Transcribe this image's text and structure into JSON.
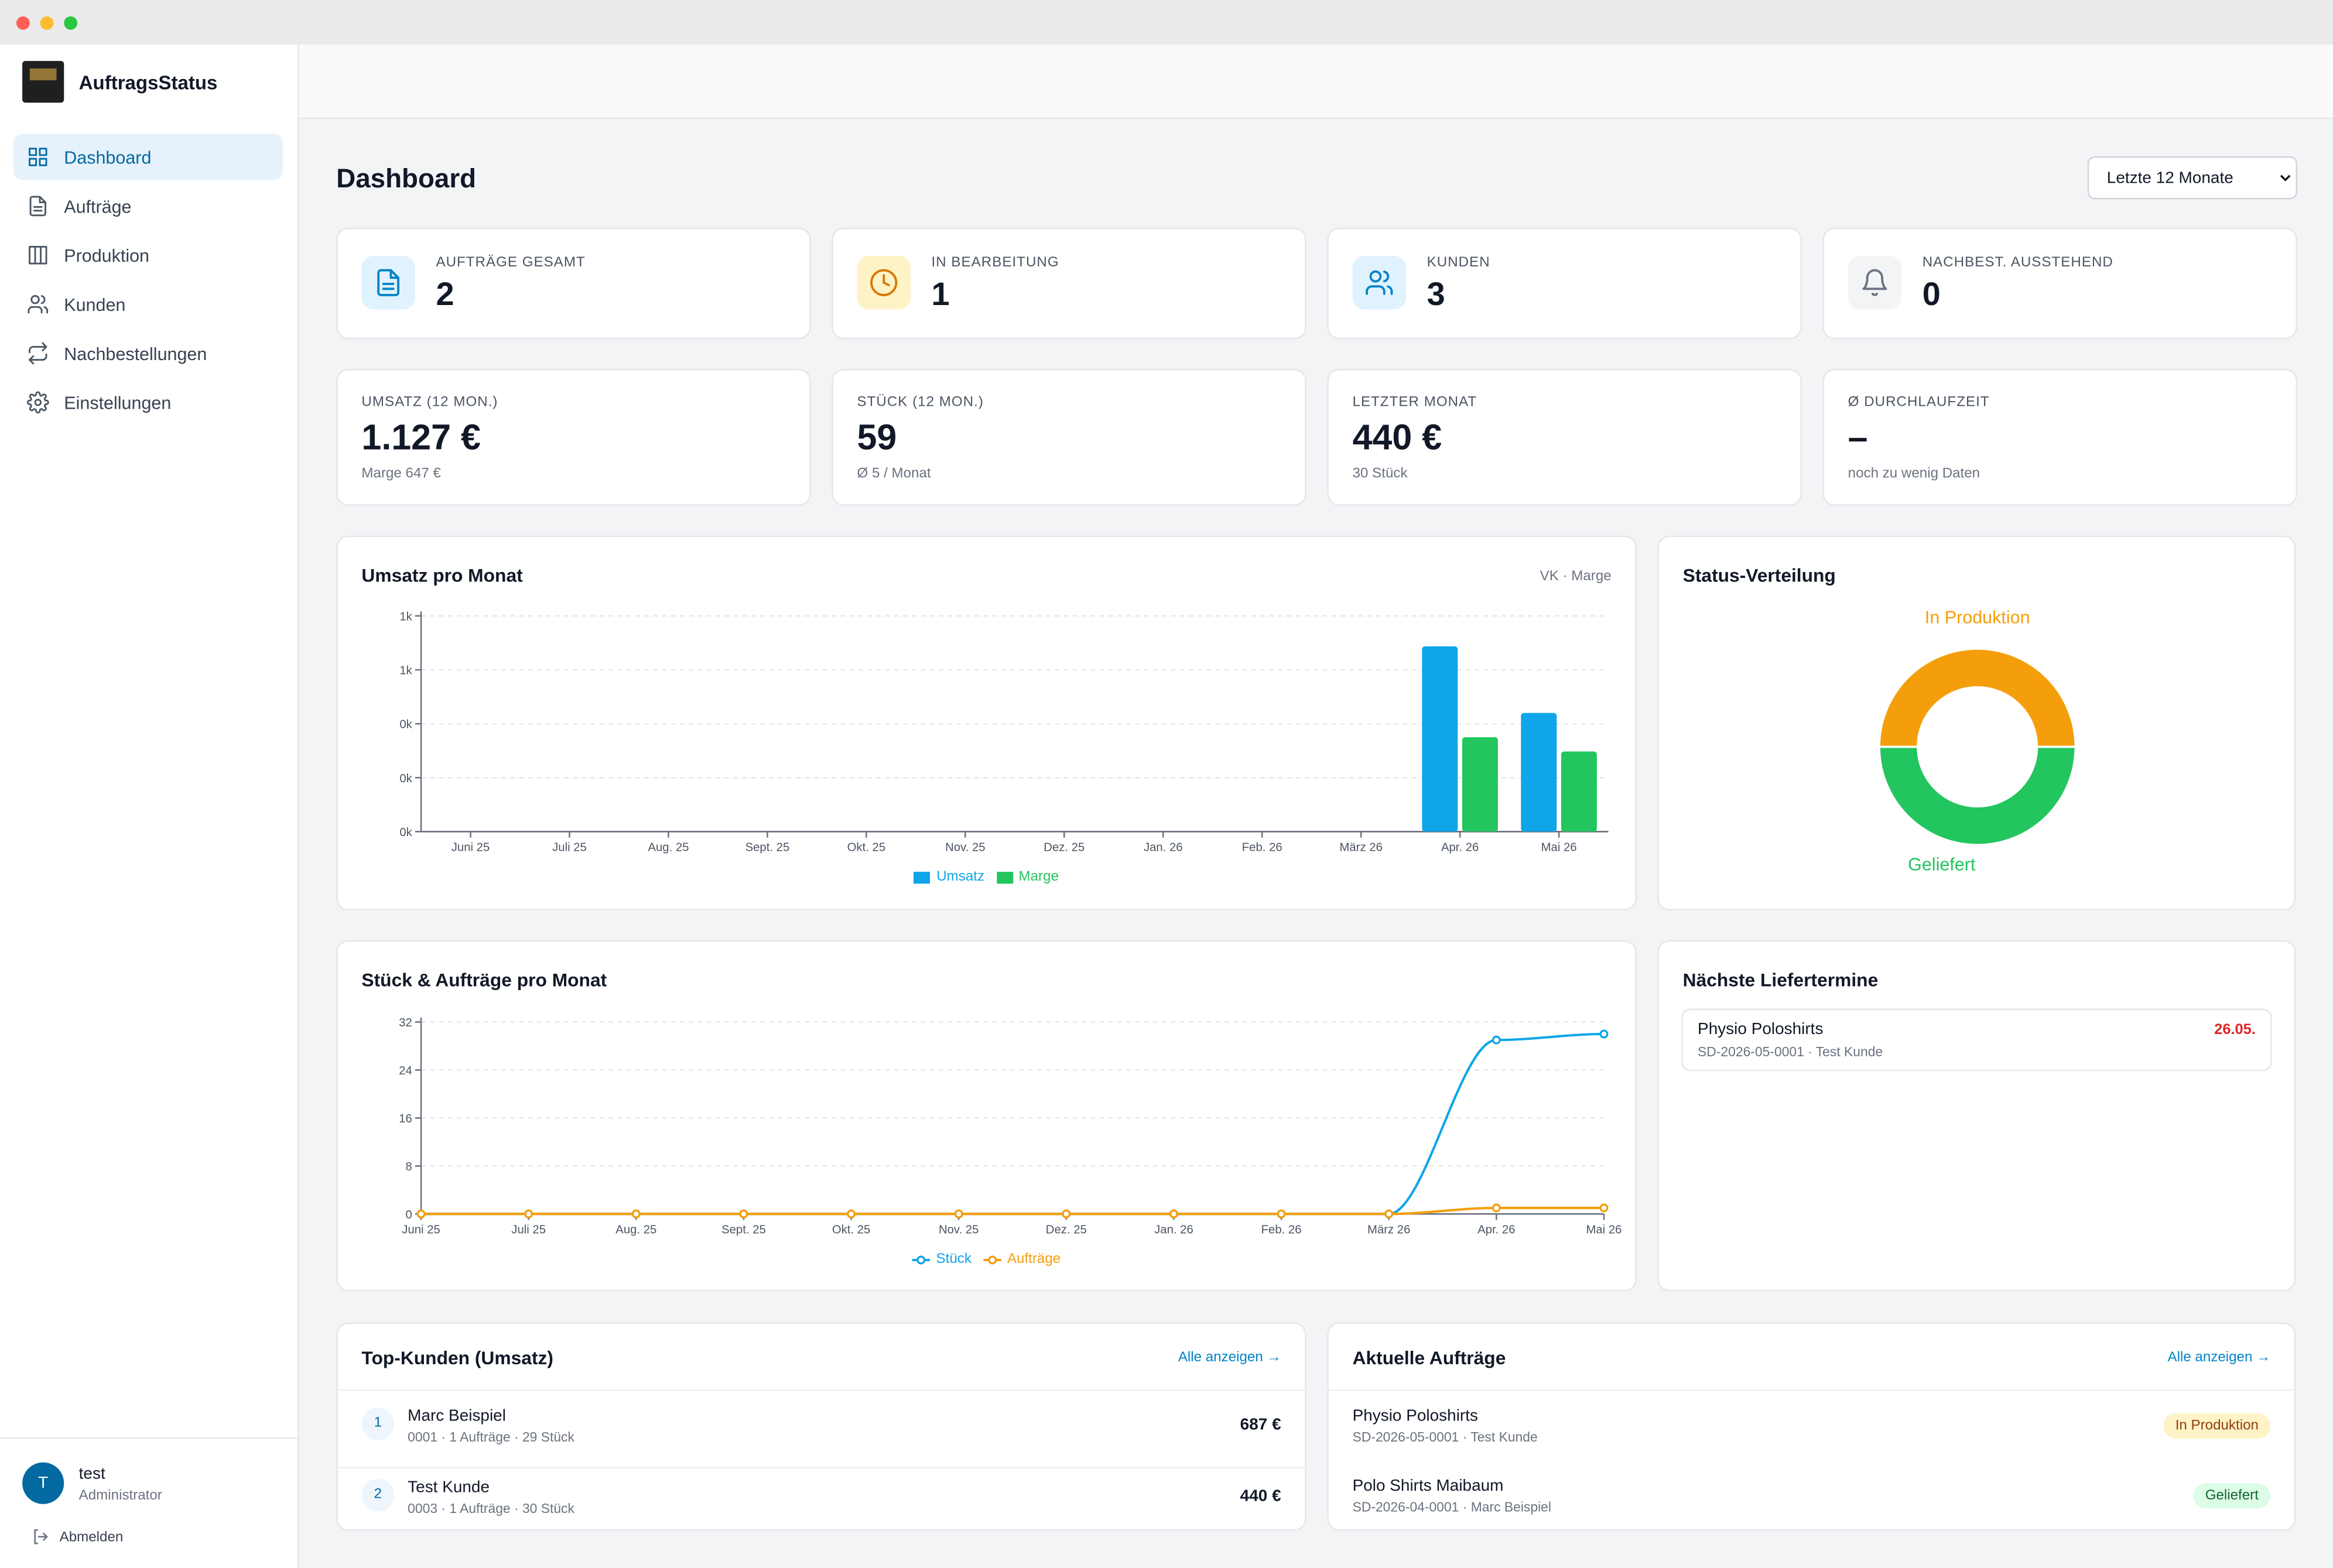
{
  "app_name": "AuftragsStatus",
  "sidebar": {
    "nav": [
      "Dashboard",
      "Aufträge",
      "Produktion",
      "Kunden",
      "Nachbestellungen",
      "Einstellungen"
    ],
    "user": {
      "initial": "T",
      "name": "test",
      "role": "Administrator"
    },
    "logout": "Abmelden"
  },
  "header": {
    "title": "Dashboard",
    "period": "Letzte 12 Monate"
  },
  "stats": [
    {
      "label": "AUFTRÄGE GESAMT",
      "value": 2
    },
    {
      "label": "IN BEARBEITUNG",
      "value": 1
    },
    {
      "label": "KUNDEN",
      "value": 3
    },
    {
      "label": "NACHBEST. AUSSTEHEND",
      "value": 0
    }
  ],
  "kpis": [
    {
      "label": "UMSATZ (12 MON.)",
      "value": "1.127 €",
      "note": "Marge 647 €"
    },
    {
      "label": "STÜCK (12 MON.)",
      "value": 59,
      "note": "Ø 5 / Monat"
    },
    {
      "label": "LETZTER MONAT",
      "value": "440 €",
      "note": "30 Stück"
    },
    {
      "label": "Ø DURCHLAUFZEIT",
      "value": "–",
      "note": "noch zu wenig Daten"
    }
  ],
  "chart_data": [
    {
      "type": "bar",
      "title": "Umsatz pro Monat",
      "subtitle": "VK · Marge",
      "categories": [
        "Juni 25",
        "Juli 25",
        "Aug. 25",
        "Sept. 25",
        "Okt. 25",
        "Nov. 25",
        "Dez. 25",
        "Jan. 26",
        "Feb. 26",
        "März 26",
        "Apr. 26",
        "Mai 26"
      ],
      "series": [
        {
          "name": "Umsatz",
          "color": "#0ea5e9",
          "values": [
            0,
            0,
            0,
            0,
            0,
            0,
            0,
            0,
            0,
            0,
            687,
            440
          ]
        },
        {
          "name": "Marge",
          "color": "#22c55e",
          "values": [
            0,
            0,
            0,
            0,
            0,
            0,
            0,
            0,
            0,
            0,
            350,
            297
          ]
        }
      ],
      "ylim": [
        0,
        800
      ],
      "yticks": [
        {
          "value": 0,
          "label": "0k"
        },
        {
          "value": 200,
          "label": "0k"
        },
        {
          "value": 400,
          "label": "0k"
        },
        {
          "value": 600,
          "label": "1k"
        },
        {
          "value": 800,
          "label": "1k"
        }
      ],
      "grid": true
    },
    {
      "type": "pie",
      "title": "Status-Verteilung",
      "categories": [
        "In Produktion",
        "Geliefert"
      ],
      "values": [
        1,
        1
      ],
      "colors": [
        "#f59e0b",
        "#22c55e"
      ]
    },
    {
      "type": "line",
      "title": "Stück & Aufträge pro Monat",
      "categories": [
        "Juni 25",
        "Juli 25",
        "Aug. 25",
        "Sept. 25",
        "Okt. 25",
        "Nov. 25",
        "Dez. 25",
        "Jan. 26",
        "Feb. 26",
        "März 26",
        "Apr. 26",
        "Mai 26"
      ],
      "series": [
        {
          "name": "Stück",
          "color": "#0ea5e9",
          "values": [
            0,
            0,
            0,
            0,
            0,
            0,
            0,
            0,
            0,
            0,
            29,
            30
          ]
        },
        {
          "name": "Aufträge",
          "color": "#f59e0b",
          "values": [
            0,
            0,
            0,
            0,
            0,
            0,
            0,
            0,
            0,
            0,
            1,
            1
          ]
        }
      ],
      "ylim": [
        0,
        32
      ],
      "yticks": [
        0,
        8,
        16,
        24,
        32
      ],
      "grid": true
    }
  ],
  "deliveries": {
    "title": "Nächste Liefertermine",
    "items": [
      {
        "name": "Physio Poloshirts",
        "meta": "SD-2026-05-0001 · Test Kunde",
        "date": "26.05."
      }
    ]
  },
  "top_customers": {
    "title": "Top-Kunden (Umsatz)",
    "link": "Alle anzeigen →",
    "rows": [
      {
        "rank": 1,
        "name": "Marc Beispiel",
        "meta": "0001 · 1 Aufträge · 29 Stück",
        "amount": "687 €"
      },
      {
        "rank": 2,
        "name": "Test Kunde",
        "meta": "0003 · 1 Aufträge · 30 Stück",
        "amount": "440 €"
      }
    ]
  },
  "recent_orders": {
    "title": "Aktuelle Aufträge",
    "link": "Alle anzeigen →",
    "rows": [
      {
        "name": "Physio Poloshirts",
        "meta": "SD-2026-05-0001 · Test Kunde",
        "status": "In Produktion"
      },
      {
        "name": "Polo Shirts Maibaum",
        "meta": "SD-2026-04-0001 · Marc Beispiel",
        "status": "Geliefert"
      }
    ]
  }
}
